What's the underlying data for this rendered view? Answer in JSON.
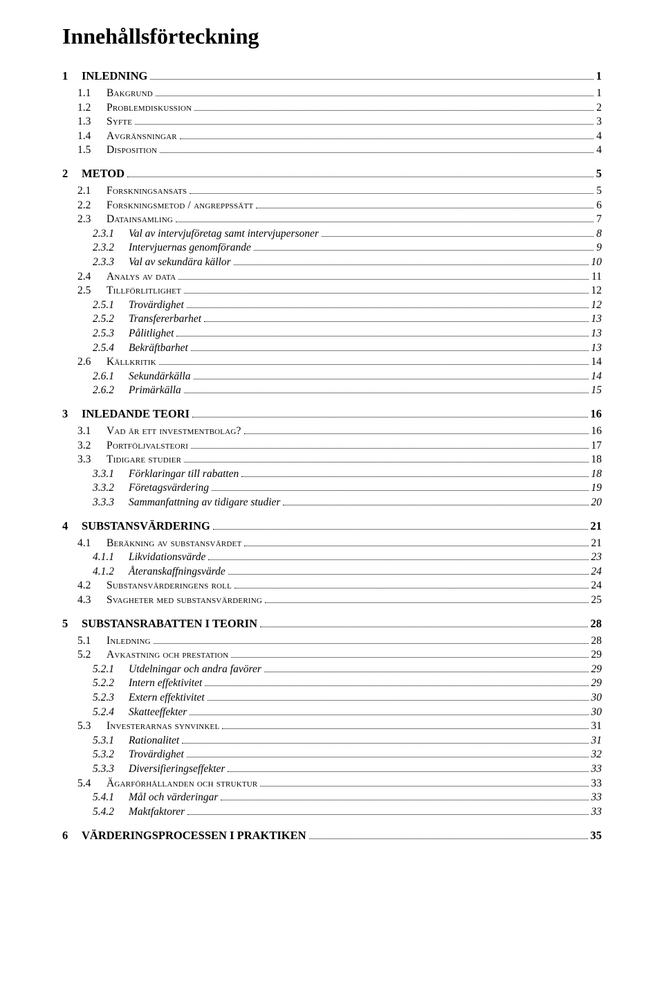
{
  "title": "Innehållsförteckning",
  "toc": [
    {
      "level": 1,
      "num": "1",
      "label": "INLEDNING",
      "page": "1"
    },
    {
      "level": 2,
      "num": "1.1",
      "label": "Bakgrund",
      "page": "1"
    },
    {
      "level": 2,
      "num": "1.2",
      "label": "Problemdiskussion",
      "page": "2"
    },
    {
      "level": 2,
      "num": "1.3",
      "label": "Syfte",
      "page": "3"
    },
    {
      "level": 2,
      "num": "1.4",
      "label": "Avgränsningar",
      "page": "4"
    },
    {
      "level": 2,
      "num": "1.5",
      "label": "Disposition",
      "page": "4"
    },
    {
      "level": 1,
      "num": "2",
      "label": "METOD",
      "page": "5"
    },
    {
      "level": 2,
      "num": "2.1",
      "label": "Forskningsansats",
      "page": "5"
    },
    {
      "level": 2,
      "num": "2.2",
      "label": "Forskningsmetod / angreppssätt",
      "page": "6"
    },
    {
      "level": 2,
      "num": "2.3",
      "label": "Datainsamling",
      "page": "7"
    },
    {
      "level": 3,
      "num": "2.3.1",
      "label": "Val av intervjuföretag samt intervjupersoner",
      "page": "8"
    },
    {
      "level": 3,
      "num": "2.3.2",
      "label": "Intervjuernas genomförande",
      "page": "9"
    },
    {
      "level": 3,
      "num": "2.3.3",
      "label": "Val av sekundära källor",
      "page": "10"
    },
    {
      "level": 2,
      "num": "2.4",
      "label": "Analys av data",
      "page": "11"
    },
    {
      "level": 2,
      "num": "2.5",
      "label": "Tillförlitlighet",
      "page": "12"
    },
    {
      "level": 3,
      "num": "2.5.1",
      "label": "Trovärdighet",
      "page": "12"
    },
    {
      "level": 3,
      "num": "2.5.2",
      "label": "Transfererbarhet",
      "page": "13"
    },
    {
      "level": 3,
      "num": "2.5.3",
      "label": "Pålitlighet",
      "page": "13"
    },
    {
      "level": 3,
      "num": "2.5.4",
      "label": "Bekräftbarhet",
      "page": "13"
    },
    {
      "level": 2,
      "num": "2.6",
      "label": "Källkritik",
      "page": "14"
    },
    {
      "level": 3,
      "num": "2.6.1",
      "label": "Sekundärkälla",
      "page": "14"
    },
    {
      "level": 3,
      "num": "2.6.2",
      "label": "Primärkälla",
      "page": "15"
    },
    {
      "level": 1,
      "num": "3",
      "label": "INLEDANDE TEORI",
      "page": "16"
    },
    {
      "level": 2,
      "num": "3.1",
      "label": "Vad är ett investmentbolag?",
      "page": "16"
    },
    {
      "level": 2,
      "num": "3.2",
      "label": "Portföljvalsteori",
      "page": "17"
    },
    {
      "level": 2,
      "num": "3.3",
      "label": "Tidigare studier",
      "page": "18"
    },
    {
      "level": 3,
      "num": "3.3.1",
      "label": "Förklaringar till rabatten",
      "page": "18"
    },
    {
      "level": 3,
      "num": "3.3.2",
      "label": "Företagsvärdering",
      "page": "19"
    },
    {
      "level": 3,
      "num": "3.3.3",
      "label": "Sammanfattning av tidigare studier",
      "page": "20"
    },
    {
      "level": 1,
      "num": "4",
      "label": "SUBSTANSVÄRDERING",
      "page": "21"
    },
    {
      "level": 2,
      "num": "4.1",
      "label": "Beräkning av substansvärdet",
      "page": "21"
    },
    {
      "level": 3,
      "num": "4.1.1",
      "label": "Likvidationsvärde",
      "page": "23"
    },
    {
      "level": 3,
      "num": "4.1.2",
      "label": "Återanskaffningsvärde",
      "page": "24"
    },
    {
      "level": 2,
      "num": "4.2",
      "label": "Substansvärderingens roll",
      "page": "24"
    },
    {
      "level": 2,
      "num": "4.3",
      "label": "Svagheter med substansvärdering",
      "page": "25"
    },
    {
      "level": 1,
      "num": "5",
      "label": "SUBSTANSRABATTEN I TEORIN",
      "page": "28"
    },
    {
      "level": 2,
      "num": "5.1",
      "label": "Inledning",
      "page": "28"
    },
    {
      "level": 2,
      "num": "5.2",
      "label": "Avkastning och prestation",
      "page": "29"
    },
    {
      "level": 3,
      "num": "5.2.1",
      "label": "Utdelningar och andra favörer",
      "page": "29"
    },
    {
      "level": 3,
      "num": "5.2.2",
      "label": "Intern effektivitet",
      "page": "29"
    },
    {
      "level": 3,
      "num": "5.2.3",
      "label": "Extern effektivitet",
      "page": "30"
    },
    {
      "level": 3,
      "num": "5.2.4",
      "label": "Skatteeffekter",
      "page": "30"
    },
    {
      "level": 2,
      "num": "5.3",
      "label": "Investerarnas synvinkel",
      "page": "31"
    },
    {
      "level": 3,
      "num": "5.3.1",
      "label": "Rationalitet",
      "page": "31"
    },
    {
      "level": 3,
      "num": "5.3.2",
      "label": "Trovärdighet",
      "page": "32"
    },
    {
      "level": 3,
      "num": "5.3.3",
      "label": "Diversifieringseffekter",
      "page": "33"
    },
    {
      "level": 2,
      "num": "5.4",
      "label": "Ägarförhållanden och struktur",
      "page": "33"
    },
    {
      "level": 3,
      "num": "5.4.1",
      "label": "Mål och värderingar",
      "page": "33"
    },
    {
      "level": 3,
      "num": "5.4.2",
      "label": "Maktfaktorer",
      "page": "33"
    },
    {
      "level": 1,
      "num": "6",
      "label": "VÄRDERINGSPROCESSEN I PRAKTIKEN",
      "page": "35"
    }
  ]
}
